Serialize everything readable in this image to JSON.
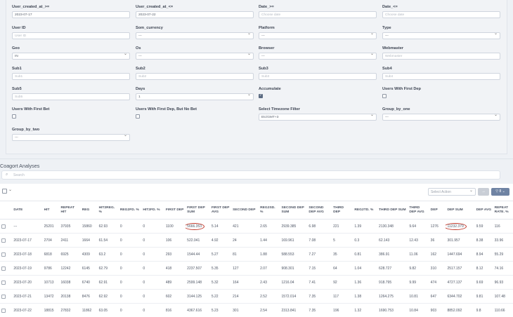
{
  "filters": [
    {
      "label": "User_created_at_>=",
      "value": "2023-07-17",
      "kind": "text"
    },
    {
      "label": "User_created_at_<=",
      "value": "2023-07-22",
      "kind": "text"
    },
    {
      "label": "Date_>=",
      "placeholder": "Choose date",
      "kind": "text"
    },
    {
      "label": "Date_<=",
      "placeholder": "Choose date",
      "kind": "text"
    },
    {
      "label": "User ID",
      "placeholder": "User ID",
      "kind": "text"
    },
    {
      "label": "Som_currency",
      "value": "---",
      "kind": "select"
    },
    {
      "label": "Platform",
      "value": "---",
      "kind": "select"
    },
    {
      "label": "Type",
      "value": "---",
      "kind": "select"
    },
    {
      "label": "Geo",
      "value": "IN",
      "kind": "select"
    },
    {
      "label": "Os",
      "value": "---",
      "kind": "select"
    },
    {
      "label": "Browser",
      "value": "---",
      "kind": "select"
    },
    {
      "label": "Webmaster",
      "placeholder": "Webmaster",
      "kind": "text"
    },
    {
      "label": "Sub1",
      "placeholder": "Sub1",
      "kind": "text"
    },
    {
      "label": "Sub2",
      "placeholder": "Sub2",
      "kind": "text"
    },
    {
      "label": "Sub3",
      "placeholder": "Sub3",
      "kind": "text"
    },
    {
      "label": "Sub4",
      "placeholder": "Sub4",
      "kind": "text"
    },
    {
      "label": "Sub5",
      "placeholder": "Sub5",
      "kind": "text"
    },
    {
      "label": "Days",
      "value": "1",
      "kind": "select"
    },
    {
      "label": "Accumulate",
      "checked": true,
      "kind": "check"
    },
    {
      "label": "Users With First Dep",
      "checked": false,
      "kind": "check"
    },
    {
      "label": "Users With First Bet",
      "checked": false,
      "kind": "check"
    },
    {
      "label": "Users With First Dep, But No Bet",
      "checked": false,
      "kind": "check"
    },
    {
      "label": "Select Timezone Filter",
      "value": "Etc/GMT+3",
      "kind": "select"
    },
    {
      "label": "Group_by_one",
      "value": "---",
      "kind": "select"
    },
    {
      "label": "Group_by_two",
      "value": "---",
      "kind": "select"
    }
  ],
  "section_title": "Coagort Analyses",
  "search": {
    "placeholder": "Search"
  },
  "toolbar": {
    "action_placeholder": "Select Action",
    "go_label": "→",
    "filter_label": "▽ 8 ⌄"
  },
  "table": {
    "headers": [
      "DATE",
      "HIT",
      "REPEAT HIT",
      "REG",
      "HIT2REG. %",
      "REG2FD. %",
      "HIT2FD. %",
      "FIRST DEP",
      "FIRST DEP SUM",
      "FIRST DEP AVG",
      "SECOND DEP",
      "REG2SD. %",
      "SECOND DEP SUM",
      "SECOND DEP AVG",
      "THIRD DEP",
      "REG2TD. %",
      "THIRD DEP SUM",
      "THIRD DEP AVG",
      "DEP",
      "DEP SUM",
      "DEP AVG",
      "REPEAT RATE. %"
    ],
    "rows": [
      [
        "---",
        "25201",
        "37935",
        "15860",
        "62.93",
        "0",
        "0",
        "1100",
        "5666.353",
        "5.14",
        "421",
        "2.65",
        "2939.385",
        "6.98",
        "221",
        "1.39",
        "2130.348",
        "9.64",
        "1276",
        "11232.379",
        "9.59",
        "116"
      ],
      [
        "2023-07-17",
        "2704",
        "2411",
        "1664",
        "61.54",
        "0",
        "0",
        "106",
        "522.041",
        "4.92",
        "24",
        "1.44",
        "169.961",
        "7.08",
        "5",
        "0.3",
        "62.143",
        "12.43",
        "36",
        "301.957",
        "8.38",
        "33.96"
      ],
      [
        "2023-07-18",
        "6818",
        "6925",
        "4309",
        "63.2",
        "0",
        "0",
        "293",
        "1544.44",
        "5.27",
        "81",
        "1.88",
        "588.553",
        "7.27",
        "35",
        "0.81",
        "386.91",
        "11.06",
        "162",
        "1447.694",
        "8.94",
        "55.29"
      ],
      [
        "2023-07-19",
        "9786",
        "12242",
        "6145",
        "62.79",
        "0",
        "0",
        "418",
        "2237.507",
        "5.35",
        "127",
        "2.07",
        "908.301",
        "7.15",
        "64",
        "1.04",
        "628.727",
        "9.82",
        "310",
        "2517.157",
        "8.12",
        "74.16"
      ],
      [
        "2023-07-20",
        "10713",
        "16038",
        "6740",
        "62.91",
        "0",
        "0",
        "489",
        "2599.148",
        "5.32",
        "164",
        "2.43",
        "1216.04",
        "7.41",
        "92",
        "1.36",
        "918.795",
        "9.99",
        "474",
        "4727.137",
        "9.69",
        "96.93"
      ],
      [
        "2023-07-21",
        "13472",
        "20138",
        "8476",
        "62.92",
        "0",
        "0",
        "602",
        "3144.125",
        "5.22",
        "214",
        "2.52",
        "1572.014",
        "7.35",
        "117",
        "1.38",
        "1264.275",
        "10.81",
        "647",
        "6344.702",
        "9.81",
        "107.48"
      ],
      [
        "2023-07-22",
        "18815",
        "27832",
        "11862",
        "63.05",
        "0",
        "0",
        "816",
        "4367.616",
        "5.23",
        "301",
        "2.54",
        "2313.841",
        "7.35",
        "196",
        "1.32",
        "1690.753",
        "10.84",
        "903",
        "8852.092",
        "9.8",
        "110.66"
      ]
    ]
  }
}
